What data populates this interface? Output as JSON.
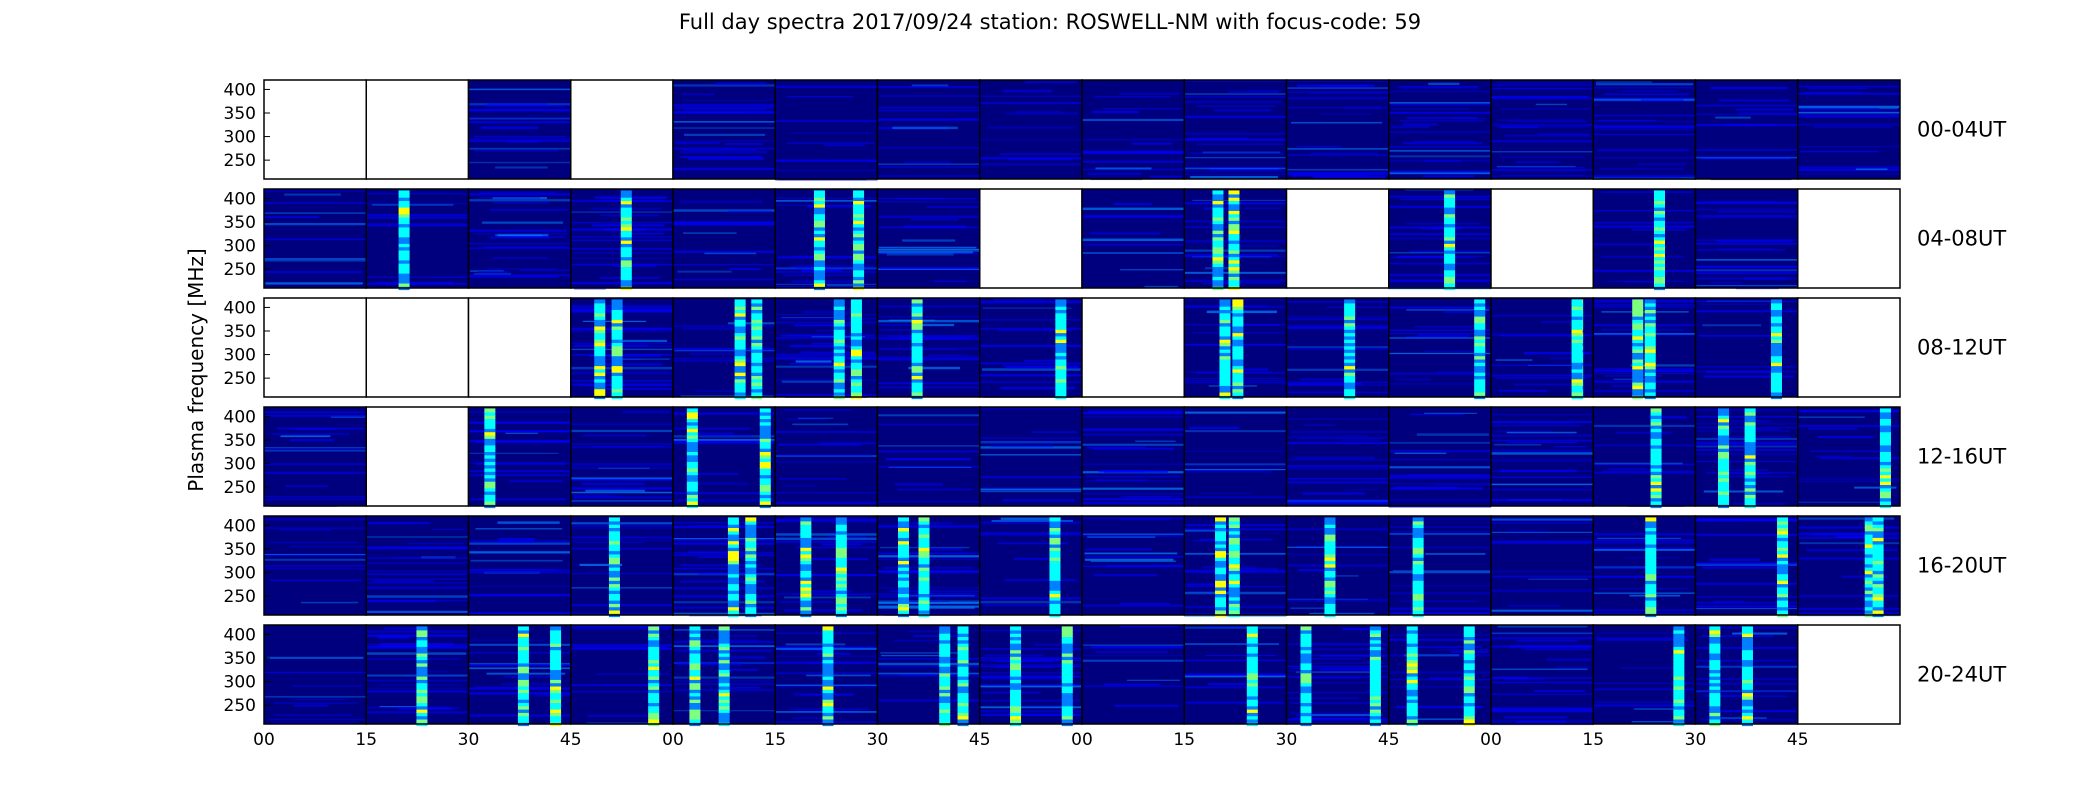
{
  "chart_data": {
    "type": "heatmap",
    "title": "Full day spectra 2017/09/24 station: ROSWELL-NM with focus-code: 59",
    "ylabel": "Plasma frequency [MHz]",
    "yticks": [
      "400",
      "350",
      "300",
      "250"
    ],
    "ylim": [
      210,
      420
    ],
    "xticks": [
      "00",
      "15",
      "30",
      "45",
      "00",
      "15",
      "30",
      "45",
      "00",
      "15",
      "30",
      "45",
      "00",
      "15",
      "30",
      "45"
    ],
    "panels_per_row": 16,
    "colormap": [
      "#00007f",
      "#0000ff",
      "#007fff",
      "#00ffff",
      "#7fff7f",
      "#ffff00",
      "#ff7f00",
      "#ff0000"
    ],
    "rows": [
      {
        "label": "00-04UT",
        "empty": [
          0,
          1,
          3
        ],
        "bursts": []
      },
      {
        "label": "04-08UT",
        "empty": [
          7,
          10,
          12,
          15
        ],
        "bursts": [
          1,
          3,
          5,
          9,
          11,
          13
        ]
      },
      {
        "label": "08-12UT",
        "empty": [
          0,
          1,
          2,
          8,
          15
        ],
        "bursts": [
          3,
          4,
          5,
          6,
          7,
          9,
          10,
          11,
          12,
          13,
          14
        ]
      },
      {
        "label": "12-16UT",
        "empty": [
          1
        ],
        "bursts": [
          2,
          4,
          13,
          14,
          15
        ]
      },
      {
        "label": "16-20UT",
        "empty": [],
        "bursts": [
          3,
          4,
          5,
          6,
          7,
          9,
          10,
          11,
          13,
          14,
          15
        ]
      },
      {
        "label": "20-24UT",
        "empty": [
          15
        ],
        "bursts": [
          1,
          2,
          3,
          4,
          5,
          6,
          7,
          9,
          10,
          11,
          13,
          14
        ]
      }
    ]
  }
}
